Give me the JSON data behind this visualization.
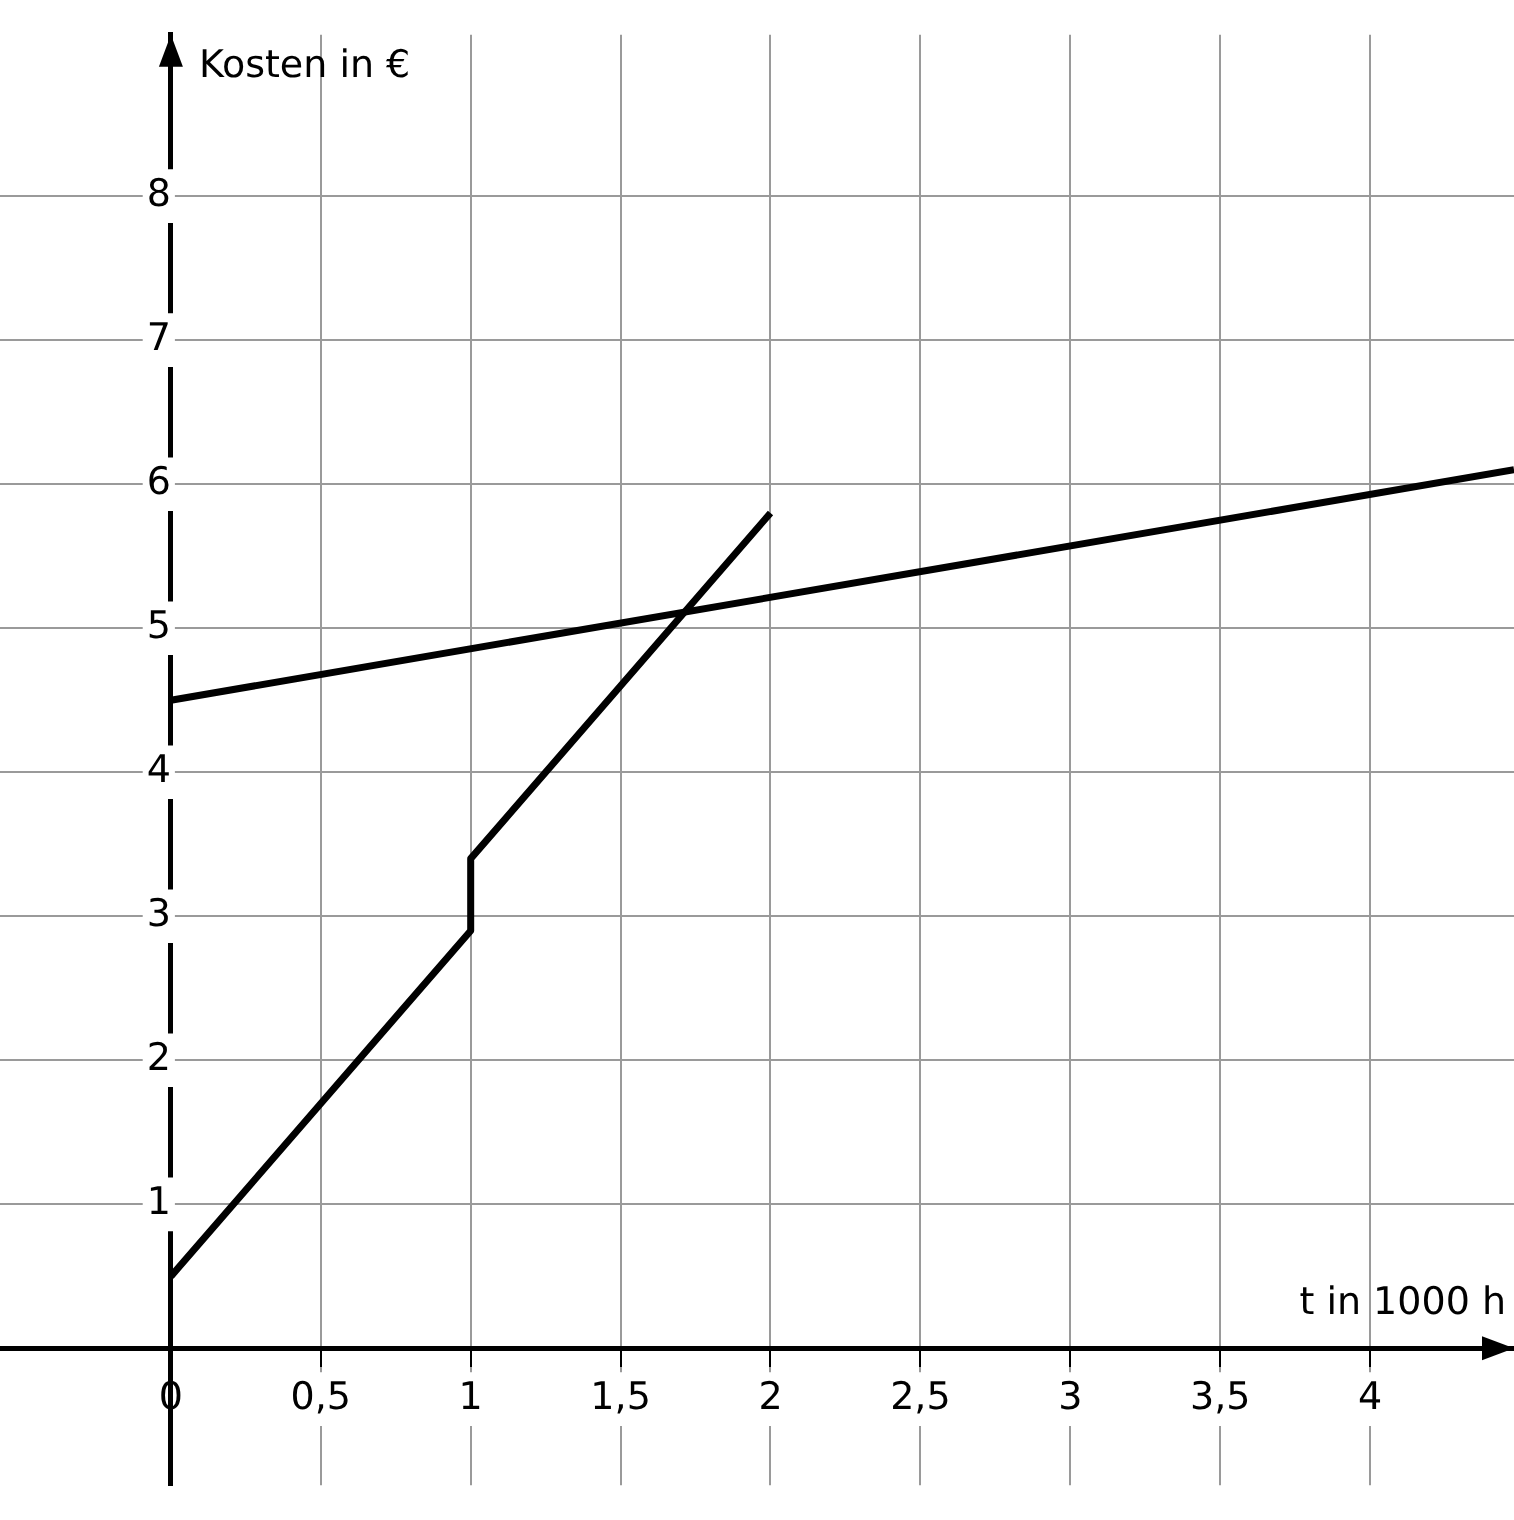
{
  "chart_data": {
    "type": "line",
    "xlabel": "t in 1000 h",
    "ylabel": "Kosten in €",
    "xlim": [
      -0.57,
      4.48
    ],
    "ylim": [
      -0.95,
      9.12
    ],
    "xticks": [
      0,
      {
        "value": 0.5,
        "label": "0,5"
      },
      1,
      {
        "value": 1.5,
        "label": "1,5"
      },
      2,
      {
        "value": 2.5,
        "label": "2,5"
      },
      3,
      {
        "value": 3.5,
        "label": "3,5"
      },
      4
    ],
    "yticks": [
      1,
      2,
      3,
      4,
      5,
      6,
      7,
      8
    ],
    "series": [
      {
        "color": "#000000",
        "x": [
          0,
          1,
          1,
          2
        ],
        "values": [
          0.5,
          2.9,
          3.4,
          5.8
        ]
      },
      {
        "color": "#000000",
        "x": [
          0,
          4.48
        ],
        "values": [
          4.5,
          6.1
        ]
      }
    ],
    "grid": true,
    "marker": "none",
    "line_style": "solid"
  }
}
